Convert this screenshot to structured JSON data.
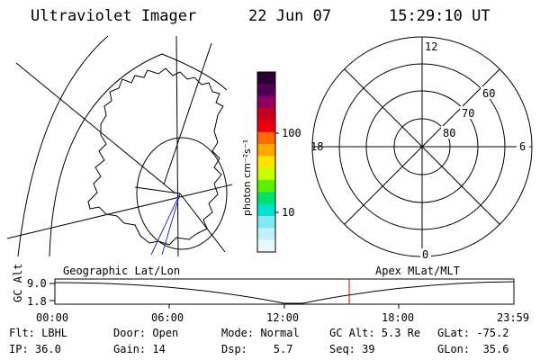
{
  "header": {
    "instrument": "Ultraviolet Imager",
    "date": "22 Jun 07",
    "time": "15:29:10 UT"
  },
  "colorbar": {
    "label": "photon cm⁻²s⁻¹",
    "tick_100": "100",
    "tick_10": "10",
    "colors": [
      "#2a0030",
      "#500055",
      "#900060",
      "#c80020",
      "#e80010",
      "#ff6a00",
      "#ffa800",
      "#ffe400",
      "#c8ff00",
      "#5cf000",
      "#00e070",
      "#00e0d0",
      "#80e8f0",
      "#c0f0f8",
      "#e8f8fc"
    ]
  },
  "polar_plot": {
    "mlt_labels": {
      "top": "12",
      "left": "18",
      "right": "6",
      "bottom": "0"
    },
    "lat_labels": [
      "60",
      "70",
      "80"
    ]
  },
  "timeline": {
    "left_title": "Geographic Lat/Lon",
    "right_title": "Apex MLat/MLT",
    "ylabel": "GC Alt",
    "y_ticks": [
      "9.0",
      "1.8"
    ],
    "x_ticks": [
      "00:00",
      "06:00",
      "12:00",
      "18:00",
      "23:59"
    ],
    "marker_color": "#cc0000"
  },
  "info": {
    "flt": "Flt: LBHL",
    "ip": "IP: 36.0",
    "door": "Door: Open",
    "gain": "Gain: 14",
    "mode": "Mode: Normal",
    "dsp": "Dsp:    5.7",
    "gcalt": "GC Alt: 5.3 Re",
    "seq": "Seq: 39",
    "glat": "GLat: -75.2",
    "glon": "GLon:  35.6"
  }
}
